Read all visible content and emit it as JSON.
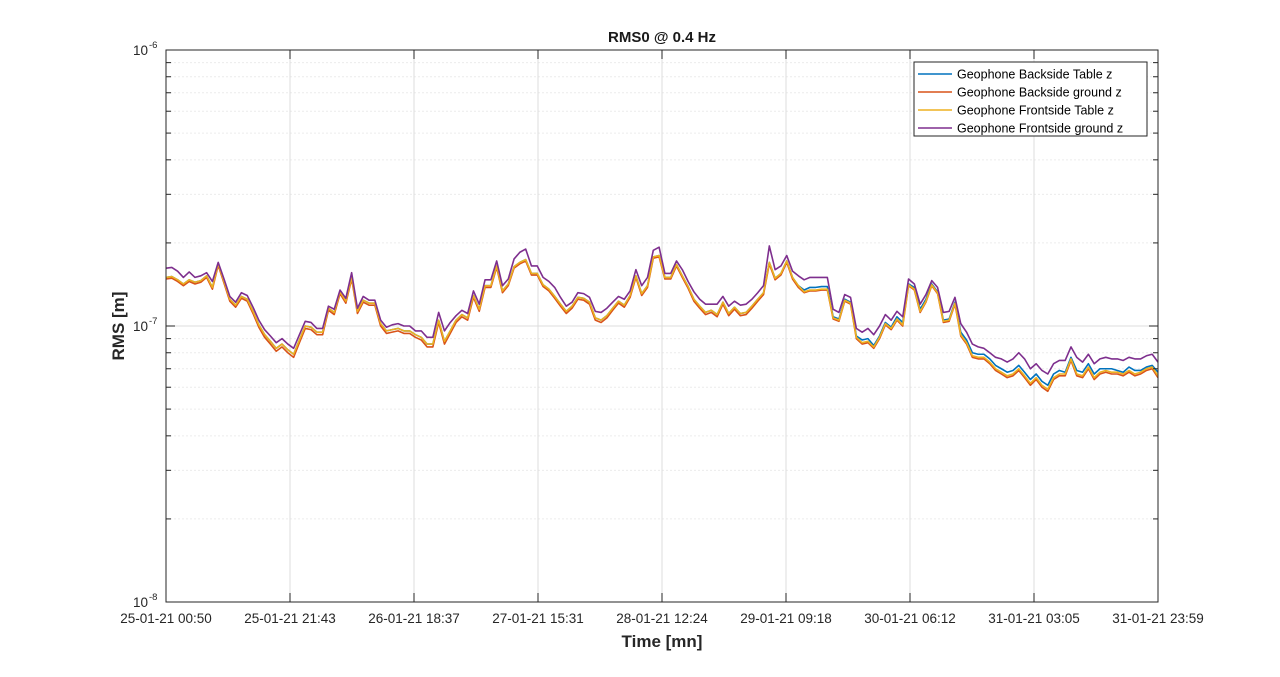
{
  "chart_data": {
    "type": "line",
    "title": "RMS0 @ 0.4 Hz",
    "xlabel": "Time [mn]",
    "ylabel": "RMS [m]",
    "yscale": "log",
    "ylim": [
      1e-08,
      1e-06
    ],
    "y_ticks": [
      {
        "value": 1e-08,
        "base": "10",
        "exp": "-8"
      },
      {
        "value": 1e-07,
        "base": "10",
        "exp": "-7"
      },
      {
        "value": 1e-06,
        "base": "10",
        "exp": "-6"
      }
    ],
    "x_ticks": [
      "25-01-21 00:50",
      "25-01-21 21:43",
      "26-01-21 18:37",
      "27-01-21 15:31",
      "28-01-21 12:24",
      "29-01-21 09:18",
      "30-01-21 06:12",
      "31-01-21 03:05",
      "31-01-21 23:59"
    ],
    "grid": true,
    "minor_grid": true,
    "legend_position": "top-right",
    "series": [
      {
        "name": "Geophone Backside Table z",
        "color": "#0072BD",
        "values": [
          1.5e-07,
          1.51e-07,
          1.47e-07,
          1.42e-07,
          1.47e-07,
          1.44e-07,
          1.46e-07,
          1.52e-07,
          1.38e-07,
          1.68e-07,
          1.45e-07,
          1.25e-07,
          1.19e-07,
          1.28e-07,
          1.25e-07,
          1.13e-07,
          1.01e-07,
          9.3e-08,
          8.8e-08,
          8.3e-08,
          8.6e-08,
          8.2e-08,
          7.9e-08,
          8.9e-08,
          1e-07,
          9.9e-08,
          9.5e-08,
          9.5e-08,
          1.16e-07,
          1.12e-07,
          1.33e-07,
          1.23e-07,
          1.5e-07,
          1.13e-07,
          1.24e-07,
          1.21e-07,
          1.21e-07,
          1.02e-07,
          9.6e-08,
          9.7e-08,
          9.8e-08,
          9.6e-08,
          9.6e-08,
          9.3e-08,
          9.1e-08,
          8.6e-08,
          8.6e-08,
          1.05e-07,
          8.8e-08,
          9.6e-08,
          1.05e-07,
          1.1e-07,
          1.07e-07,
          1.29e-07,
          1.15e-07,
          1.4e-07,
          1.4e-07,
          1.65e-07,
          1.34e-07,
          1.42e-07,
          1.64e-07,
          1.7e-07,
          1.74e-07,
          1.55e-07,
          1.55e-07,
          1.41e-07,
          1.36e-07,
          1.28e-07,
          1.2e-07,
          1.13e-07,
          1.18e-07,
          1.27e-07,
          1.26e-07,
          1.22e-07,
          1.07e-07,
          1.05e-07,
          1.09e-07,
          1.16e-07,
          1.23e-07,
          1.19e-07,
          1.29e-07,
          1.52e-07,
          1.31e-07,
          1.4e-07,
          1.78e-07,
          1.8e-07,
          1.5e-07,
          1.5e-07,
          1.67e-07,
          1.52e-07,
          1.39e-07,
          1.25e-07,
          1.18e-07,
          1.12e-07,
          1.14e-07,
          1.1e-07,
          1.22e-07,
          1.11e-07,
          1.17e-07,
          1.11e-07,
          1.12e-07,
          1.18e-07,
          1.25e-07,
          1.32e-07,
          1.7e-07,
          1.49e-07,
          1.55e-07,
          1.72e-07,
          1.5e-07,
          1.4e-07,
          1.35e-07,
          1.38e-07,
          1.38e-07,
          1.39e-07,
          1.39e-07,
          1.08e-07,
          1.06e-07,
          1.25e-07,
          1.22e-07,
          9.2e-08,
          8.9e-08,
          9e-08,
          8.5e-08,
          9.2e-08,
          1.03e-07,
          9.9e-08,
          1.08e-07,
          1.03e-07,
          1.42e-07,
          1.38e-07,
          1.15e-07,
          1.25e-07,
          1.42e-07,
          1.33e-07,
          1.05e-07,
          1.06e-07,
          1.22e-07,
          9.5e-08,
          8.9e-08,
          8e-08,
          7.9e-08,
          7.9e-08,
          7.6e-08,
          7.2e-08,
          7e-08,
          6.8e-08,
          6.9e-08,
          7.2e-08,
          6.8e-08,
          6.4e-08,
          6.7e-08,
          6.3e-08,
          6.1e-08,
          6.7e-08,
          6.9e-08,
          6.8e-08,
          7.7e-08,
          6.9e-08,
          6.8e-08,
          7.3e-08,
          6.7e-08,
          7e-08,
          7e-08,
          7e-08,
          6.9e-08,
          6.8e-08,
          7.1e-08,
          6.9e-08,
          6.9e-08,
          7.1e-08,
          7.2e-08,
          6.8e-08
        ]
      },
      {
        "name": "Geophone Backside ground z",
        "color": "#D95319",
        "values": [
          1.48e-07,
          1.49e-07,
          1.45e-07,
          1.4e-07,
          1.45e-07,
          1.42e-07,
          1.44e-07,
          1.5e-07,
          1.36e-07,
          1.66e-07,
          1.43e-07,
          1.23e-07,
          1.17e-07,
          1.26e-07,
          1.23e-07,
          1.11e-07,
          9.9e-08,
          9.1e-08,
          8.6e-08,
          8.1e-08,
          8.4e-08,
          8e-08,
          7.7e-08,
          8.7e-08,
          9.8e-08,
          9.7e-08,
          9.3e-08,
          9.3e-08,
          1.14e-07,
          1.1e-07,
          1.31e-07,
          1.21e-07,
          1.48e-07,
          1.11e-07,
          1.22e-07,
          1.19e-07,
          1.19e-07,
          1e-07,
          9.4e-08,
          9.5e-08,
          9.6e-08,
          9.4e-08,
          9.4e-08,
          9.1e-08,
          8.9e-08,
          8.4e-08,
          8.4e-08,
          1.03e-07,
          8.6e-08,
          9.4e-08,
          1.03e-07,
          1.08e-07,
          1.05e-07,
          1.27e-07,
          1.13e-07,
          1.38e-07,
          1.38e-07,
          1.63e-07,
          1.32e-07,
          1.4e-07,
          1.62e-07,
          1.68e-07,
          1.72e-07,
          1.53e-07,
          1.53e-07,
          1.39e-07,
          1.34e-07,
          1.26e-07,
          1.18e-07,
          1.11e-07,
          1.16e-07,
          1.25e-07,
          1.24e-07,
          1.2e-07,
          1.05e-07,
          1.03e-07,
          1.07e-07,
          1.14e-07,
          1.21e-07,
          1.17e-07,
          1.27e-07,
          1.5e-07,
          1.29e-07,
          1.38e-07,
          1.76e-07,
          1.78e-07,
          1.48e-07,
          1.48e-07,
          1.65e-07,
          1.5e-07,
          1.37e-07,
          1.23e-07,
          1.16e-07,
          1.1e-07,
          1.12e-07,
          1.08e-07,
          1.2e-07,
          1.09e-07,
          1.15e-07,
          1.09e-07,
          1.1e-07,
          1.16e-07,
          1.23e-07,
          1.3e-07,
          1.68e-07,
          1.47e-07,
          1.53e-07,
          1.7e-07,
          1.48e-07,
          1.38e-07,
          1.32e-07,
          1.34e-07,
          1.34e-07,
          1.35e-07,
          1.35e-07,
          1.06e-07,
          1.04e-07,
          1.23e-07,
          1.2e-07,
          9e-08,
          8.6e-08,
          8.7e-08,
          8.3e-08,
          9e-08,
          1.01e-07,
          9.7e-08,
          1.05e-07,
          1e-07,
          1.4e-07,
          1.35e-07,
          1.12e-07,
          1.22e-07,
          1.4e-07,
          1.31e-07,
          1.03e-07,
          1.04e-07,
          1.2e-07,
          9.2e-08,
          8.6e-08,
          7.7e-08,
          7.6e-08,
          7.6e-08,
          7.3e-08,
          6.9e-08,
          6.7e-08,
          6.5e-08,
          6.6e-08,
          6.9e-08,
          6.5e-08,
          6.1e-08,
          6.4e-08,
          6e-08,
          5.8e-08,
          6.4e-08,
          6.6e-08,
          6.6e-08,
          7.5e-08,
          6.6e-08,
          6.5e-08,
          7e-08,
          6.4e-08,
          6.7e-08,
          6.8e-08,
          6.7e-08,
          6.7e-08,
          6.6e-08,
          6.8e-08,
          6.6e-08,
          6.7e-08,
          6.9e-08,
          7e-08,
          6.5e-08
        ]
      },
      {
        "name": "Geophone Frontside Table z",
        "color": "#EDB120",
        "values": [
          1.5e-07,
          1.51e-07,
          1.47e-07,
          1.42e-07,
          1.47e-07,
          1.44e-07,
          1.46e-07,
          1.52e-07,
          1.38e-07,
          1.68e-07,
          1.45e-07,
          1.25e-07,
          1.19e-07,
          1.28e-07,
          1.25e-07,
          1.13e-07,
          1.01e-07,
          9.3e-08,
          8.8e-08,
          8.3e-08,
          8.6e-08,
          8.2e-08,
          7.9e-08,
          8.9e-08,
          1e-07,
          9.9e-08,
          9.5e-08,
          9.5e-08,
          1.16e-07,
          1.12e-07,
          1.33e-07,
          1.23e-07,
          1.5e-07,
          1.13e-07,
          1.24e-07,
          1.21e-07,
          1.21e-07,
          1.02e-07,
          9.6e-08,
          9.7e-08,
          9.8e-08,
          9.6e-08,
          9.6e-08,
          9.3e-08,
          9.1e-08,
          8.6e-08,
          8.6e-08,
          1.05e-07,
          8.8e-08,
          9.6e-08,
          1.05e-07,
          1.1e-07,
          1.07e-07,
          1.29e-07,
          1.15e-07,
          1.4e-07,
          1.4e-07,
          1.65e-07,
          1.34e-07,
          1.42e-07,
          1.64e-07,
          1.7e-07,
          1.74e-07,
          1.55e-07,
          1.55e-07,
          1.41e-07,
          1.36e-07,
          1.28e-07,
          1.2e-07,
          1.13e-07,
          1.18e-07,
          1.27e-07,
          1.26e-07,
          1.22e-07,
          1.07e-07,
          1.05e-07,
          1.09e-07,
          1.16e-07,
          1.23e-07,
          1.19e-07,
          1.29e-07,
          1.52e-07,
          1.31e-07,
          1.4e-07,
          1.78e-07,
          1.8e-07,
          1.5e-07,
          1.5e-07,
          1.67e-07,
          1.52e-07,
          1.39e-07,
          1.25e-07,
          1.18e-07,
          1.12e-07,
          1.14e-07,
          1.1e-07,
          1.22e-07,
          1.11e-07,
          1.17e-07,
          1.11e-07,
          1.12e-07,
          1.18e-07,
          1.25e-07,
          1.32e-07,
          1.7e-07,
          1.49e-07,
          1.55e-07,
          1.72e-07,
          1.5e-07,
          1.4e-07,
          1.33e-07,
          1.35e-07,
          1.35e-07,
          1.36e-07,
          1.36e-07,
          1.07e-07,
          1.05e-07,
          1.24e-07,
          1.21e-07,
          9.1e-08,
          8.7e-08,
          8.8e-08,
          8.4e-08,
          9.1e-08,
          1.02e-07,
          9.8e-08,
          1.06e-07,
          1.01e-07,
          1.41e-07,
          1.36e-07,
          1.13e-07,
          1.23e-07,
          1.41e-07,
          1.32e-07,
          1.04e-07,
          1.05e-07,
          1.21e-07,
          9.3e-08,
          8.7e-08,
          7.8e-08,
          7.7e-08,
          7.7e-08,
          7.4e-08,
          7e-08,
          6.8e-08,
          6.6e-08,
          6.7e-08,
          7e-08,
          6.6e-08,
          6.2e-08,
          6.5e-08,
          6.1e-08,
          5.9e-08,
          6.5e-08,
          6.7e-08,
          6.7e-08,
          7.6e-08,
          6.7e-08,
          6.6e-08,
          7.1e-08,
          6.5e-08,
          6.8e-08,
          6.9e-08,
          6.8e-08,
          6.8e-08,
          6.7e-08,
          6.9e-08,
          6.7e-08,
          6.8e-08,
          7e-08,
          7.1e-08,
          6.6e-08
        ]
      },
      {
        "name": "Geophone Frontside ground z",
        "color": "#7E2F8E",
        "values": [
          1.62e-07,
          1.63e-07,
          1.58e-07,
          1.5e-07,
          1.57e-07,
          1.5e-07,
          1.52e-07,
          1.56e-07,
          1.45e-07,
          1.7e-07,
          1.48e-07,
          1.28e-07,
          1.22e-07,
          1.32e-07,
          1.29e-07,
          1.17e-07,
          1.05e-07,
          9.7e-08,
          9.2e-08,
          8.7e-08,
          9e-08,
          8.6e-08,
          8.3e-08,
          9.3e-08,
          1.04e-07,
          1.03e-07,
          9.8e-08,
          9.8e-08,
          1.18e-07,
          1.15e-07,
          1.35e-07,
          1.26e-07,
          1.56e-07,
          1.16e-07,
          1.28e-07,
          1.24e-07,
          1.24e-07,
          1.05e-07,
          9.9e-08,
          1.01e-07,
          1.02e-07,
          1e-07,
          1e-07,
          9.6e-08,
          9.6e-08,
          9.1e-08,
          9.1e-08,
          1.12e-07,
          9.6e-08,
          1.03e-07,
          1.09e-07,
          1.14e-07,
          1.11e-07,
          1.34e-07,
          1.2e-07,
          1.47e-07,
          1.47e-07,
          1.72e-07,
          1.4e-07,
          1.48e-07,
          1.75e-07,
          1.85e-07,
          1.9e-07,
          1.65e-07,
          1.65e-07,
          1.5e-07,
          1.45e-07,
          1.38e-07,
          1.27e-07,
          1.18e-07,
          1.22e-07,
          1.32e-07,
          1.31e-07,
          1.27e-07,
          1.13e-07,
          1.12e-07,
          1.16e-07,
          1.22e-07,
          1.28e-07,
          1.25e-07,
          1.34e-07,
          1.6e-07,
          1.4e-07,
          1.5e-07,
          1.88e-07,
          1.93e-07,
          1.55e-07,
          1.55e-07,
          1.72e-07,
          1.6e-07,
          1.45e-07,
          1.33e-07,
          1.25e-07,
          1.2e-07,
          1.2e-07,
          1.2e-07,
          1.28e-07,
          1.18e-07,
          1.23e-07,
          1.19e-07,
          1.2e-07,
          1.25e-07,
          1.32e-07,
          1.4e-07,
          1.95e-07,
          1.6e-07,
          1.65e-07,
          1.8e-07,
          1.58e-07,
          1.52e-07,
          1.47e-07,
          1.5e-07,
          1.5e-07,
          1.5e-07,
          1.5e-07,
          1.15e-07,
          1.12e-07,
          1.3e-07,
          1.27e-07,
          9.8e-08,
          9.5e-08,
          9.8e-08,
          9.3e-08,
          1e-07,
          1.1e-07,
          1.05e-07,
          1.13e-07,
          1.08e-07,
          1.48e-07,
          1.42e-07,
          1.2e-07,
          1.3e-07,
          1.46e-07,
          1.38e-07,
          1.12e-07,
          1.13e-07,
          1.27e-07,
          1.02e-07,
          9.5e-08,
          8.6e-08,
          8.4e-08,
          8.3e-08,
          8e-08,
          7.7e-08,
          7.6e-08,
          7.4e-08,
          7.6e-08,
          8e-08,
          7.6e-08,
          7e-08,
          7.3e-08,
          6.9e-08,
          6.7e-08,
          7.3e-08,
          7.5e-08,
          7.5e-08,
          8.4e-08,
          7.7e-08,
          7.4e-08,
          7.9e-08,
          7.3e-08,
          7.6e-08,
          7.7e-08,
          7.6e-08,
          7.6e-08,
          7.5e-08,
          7.7e-08,
          7.6e-08,
          7.6e-08,
          7.8e-08,
          7.9e-08,
          7.4e-08
        ]
      }
    ]
  }
}
